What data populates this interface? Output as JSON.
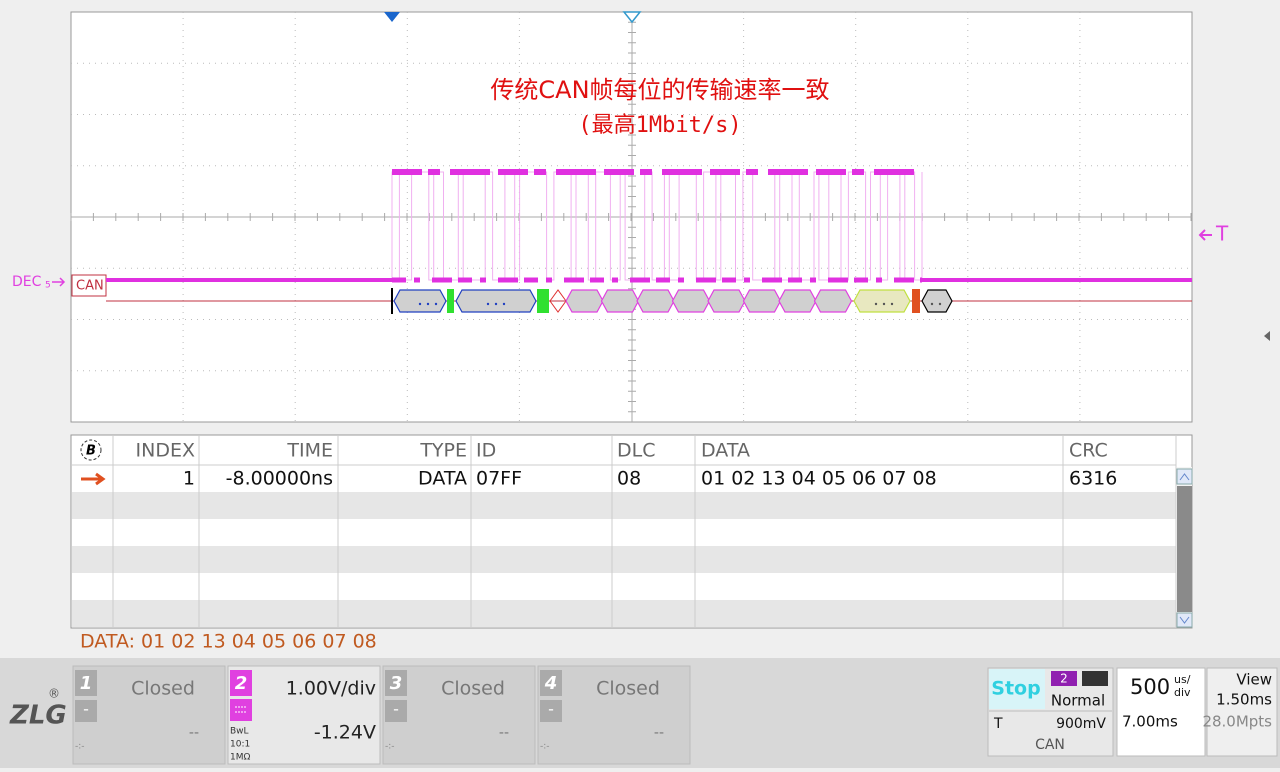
{
  "annotation": {
    "line1": "传统CAN帧每位的传输速率一致",
    "line2": "(最高1Mbit/s)"
  },
  "waveform": {
    "channel_label": "DEC",
    "channel_sub": "5",
    "bus_label": "CAN",
    "trigger_label": "T"
  },
  "table": {
    "badge": "B",
    "columns": [
      "INDEX",
      "TIME",
      "TYPE",
      "ID",
      "DLC",
      "DATA",
      "CRC"
    ],
    "rows": [
      [
        "1",
        "-8.00000ns",
        "DATA",
        "07FF",
        "08",
        "01 02 13 04 05 06 07 08",
        "6316"
      ]
    ]
  },
  "detail": "DATA: 01 02 13 04 05 06 07 08",
  "logo": {
    "text": "ZLG",
    "mark": "®"
  },
  "channels": [
    {
      "number": "1",
      "status": "Closed",
      "minus": "-",
      "offset": "--",
      "coupling": "-:-"
    },
    {
      "number": "2",
      "scale": "1.00V/div",
      "offset": "-1.24V",
      "bandwidth": "BwL",
      "probe": "10:1",
      "impedance": "1MΩ"
    },
    {
      "number": "3",
      "status": "Closed",
      "minus": "-",
      "offset": "--",
      "coupling": "-:-"
    },
    {
      "number": "4",
      "status": "Closed",
      "minus": "-",
      "offset": "--",
      "coupling": "-:-"
    }
  ],
  "status": {
    "run": "Stop",
    "trigger_source": "2",
    "trigger_mode": "Normal",
    "trigger_label": "T",
    "trigger_level": "900mV",
    "trigger_type": "CAN",
    "timebase": "500",
    "timebase_unit_top": "us/",
    "timebase_unit_bottom": "div",
    "delay": "7.00ms",
    "view_label": "View",
    "view": "1.50ms",
    "memory": "28.0Mpts"
  }
}
